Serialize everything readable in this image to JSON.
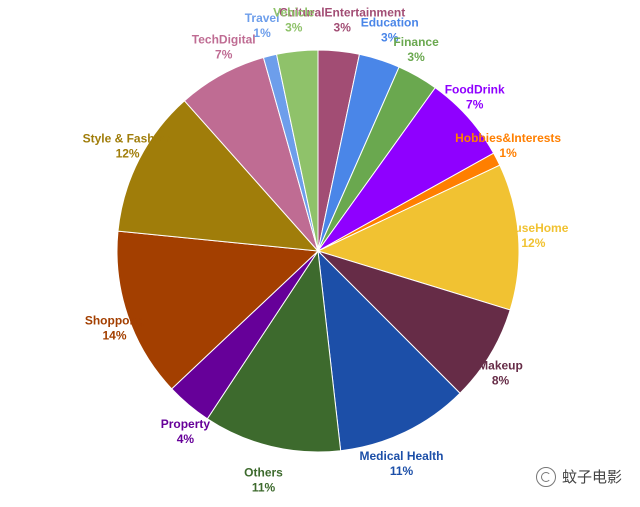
{
  "chart_data": {
    "type": "pie",
    "title": "",
    "slices": [
      {
        "label": "CulturalEntertainment",
        "pct_text": "3%",
        "value": 3.4,
        "color": "#a24d74",
        "label_color": "#a24d74"
      },
      {
        "label": "Education",
        "pct_text": "3%",
        "value": 3.4,
        "color": "#4a86e8",
        "label_color": "#4a86e8"
      },
      {
        "label": "Finance",
        "pct_text": "3%",
        "value": 3.4,
        "color": "#6aa84f",
        "label_color": "#6aa84f"
      },
      {
        "label": "FoodDrink",
        "pct_text": "7%",
        "value": 7.2,
        "color": "#8f00ff",
        "label_color": "#8f00ff"
      },
      {
        "label": "Hobbies&Interests",
        "pct_text": "1%",
        "value": 1.1,
        "color": "#ff7f00",
        "label_color": "#ff7f00"
      },
      {
        "label": "HouseHome",
        "pct_text": "12%",
        "value": 12.1,
        "color": "#f1c232",
        "label_color": "#f1c232"
      },
      {
        "label": "Makeup",
        "pct_text": "8%",
        "value": 8.0,
        "color": "#662c47",
        "label_color": "#662c47"
      },
      {
        "label": "Medical Health",
        "pct_text": "11%",
        "value": 11.0,
        "color": "#1c4fa8",
        "label_color": "#1c4fa8"
      },
      {
        "label": "Others",
        "pct_text": "11%",
        "value": 11.4,
        "color": "#3d6a2d",
        "label_color": "#3d6a2d"
      },
      {
        "label": "Property",
        "pct_text": "4%",
        "value": 3.8,
        "color": "#660099",
        "label_color": "#660099"
      },
      {
        "label": "Shoppong",
        "pct_text": "14%",
        "value": 14.0,
        "color": "#a33f00",
        "label_color": "#a33f00"
      },
      {
        "label": "Style & Fashion",
        "pct_text": "12%",
        "value": 12.2,
        "color": "#a07d0a",
        "label_color": "#a07d0a"
      },
      {
        "label": "TechDigital",
        "pct_text": "7%",
        "value": 7.4,
        "color": "#bf6c93",
        "label_color": "#bf6c93"
      },
      {
        "label": "Travel",
        "pct_text": "1%",
        "value": 1.1,
        "color": "#6d9eeb",
        "label_color": "#6d9eeb"
      },
      {
        "label": "Vehicle",
        "pct_text": "3%",
        "value": 3.4,
        "color": "#8fc26a",
        "label_color": "#8fc26a"
      }
    ],
    "legend": "none"
  },
  "watermark": {
    "text": "蚊子电影",
    "icon": "wechat-logo-icon"
  }
}
